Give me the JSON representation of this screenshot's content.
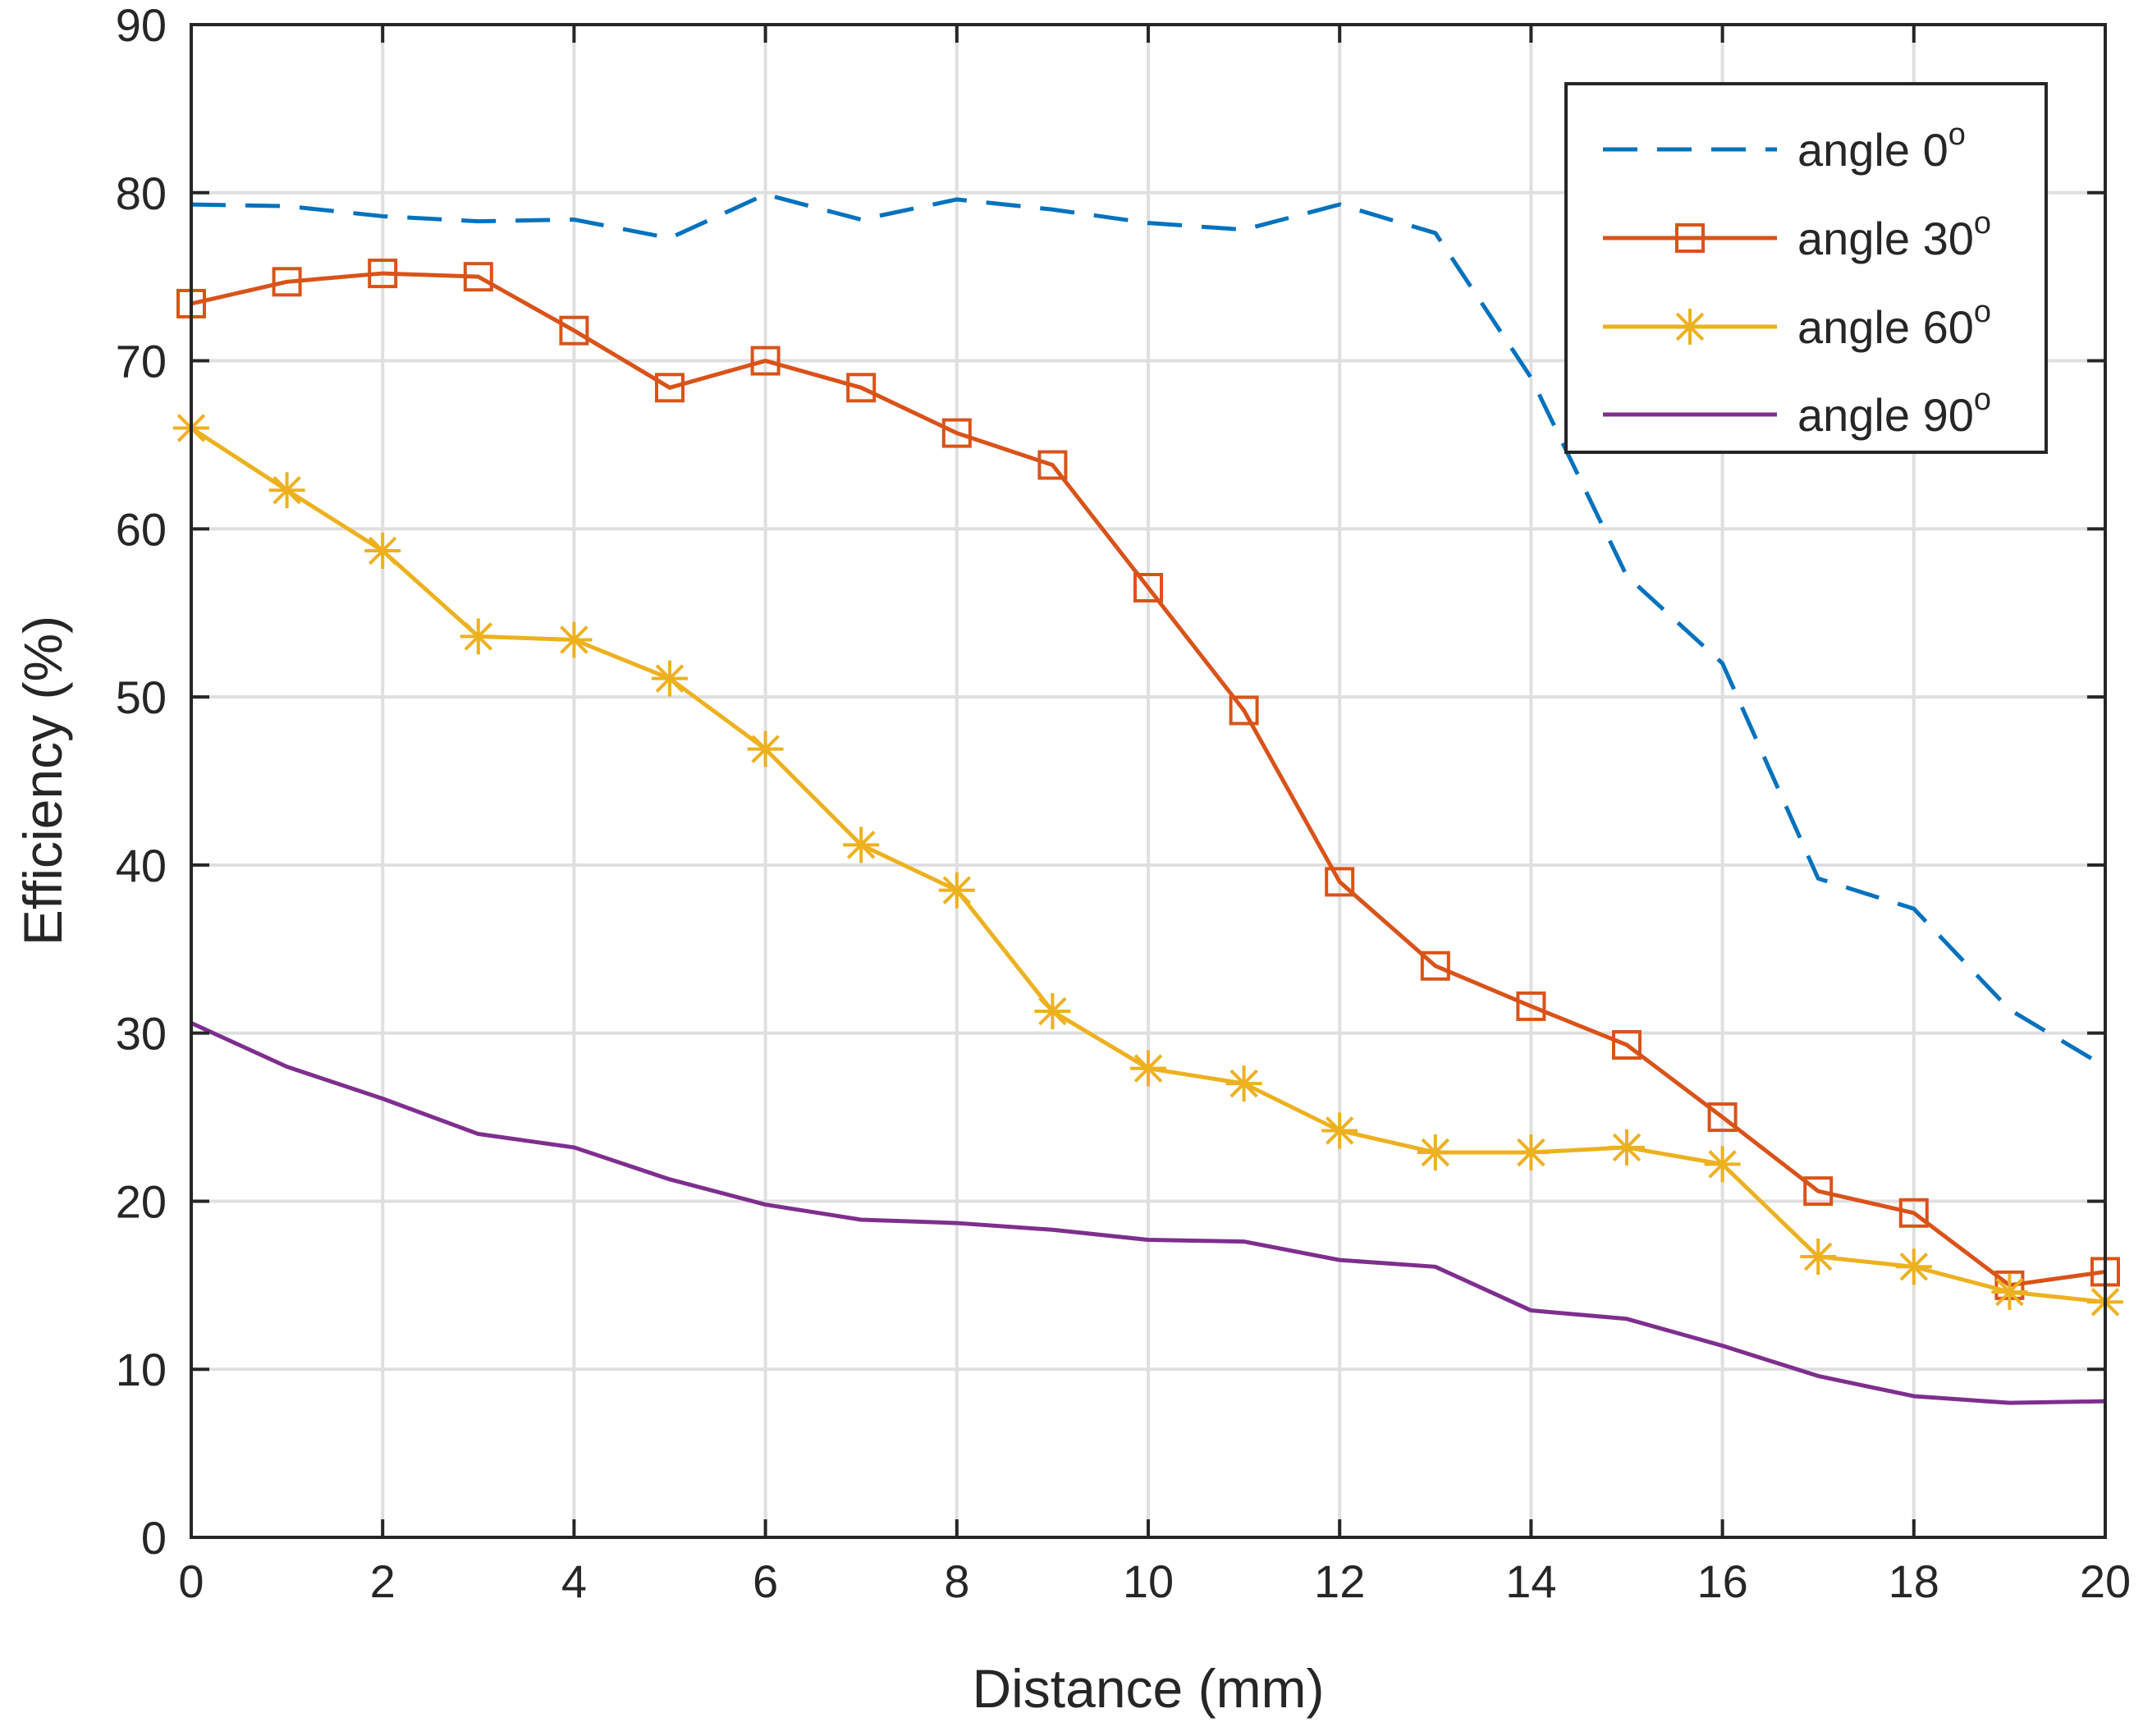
{
  "chart_data": {
    "type": "line",
    "title": "",
    "xlabel": "Distance (mm)",
    "ylabel": "Efficiency (%)",
    "xlim": [
      0,
      20
    ],
    "ylim": [
      0,
      90
    ],
    "xticks": [
      "0",
      "2",
      "4",
      "6",
      "8",
      "10",
      "12",
      "14",
      "16",
      "18",
      "20"
    ],
    "yticks": [
      "0",
      "10",
      "20",
      "30",
      "40",
      "50",
      "60",
      "70",
      "80",
      "90"
    ],
    "grid": true,
    "legend_position": "top-right",
    "x": [
      0,
      1,
      2,
      3,
      4,
      5,
      6,
      7,
      8,
      9,
      10,
      11,
      12,
      13,
      14,
      15,
      16,
      17,
      18,
      19,
      20
    ],
    "series": [
      {
        "name": "angle 0",
        "superscript": "o",
        "color": "#0072BD",
        "dash": "dashed",
        "marker": "none",
        "values": [
          79.3,
          79.2,
          78.6,
          78.3,
          78.4,
          77.3,
          79.9,
          78.4,
          79.6,
          79.0,
          78.2,
          77.8,
          79.3,
          77.6,
          69.0,
          57.2,
          52.0,
          39.2,
          37.4,
          31.4,
          28.0
        ]
      },
      {
        "name": "angle 30",
        "superscript": "o",
        "color": "#D95319",
        "dash": "solid",
        "marker": "square",
        "values": [
          73.4,
          74.7,
          75.2,
          75.0,
          71.8,
          68.4,
          70.0,
          68.4,
          65.7,
          63.8,
          56.5,
          49.2,
          39.0,
          34.0,
          31.6,
          29.3,
          25.0,
          20.6,
          19.3,
          15.0,
          15.8
        ]
      },
      {
        "name": "angle 60",
        "superscript": "o",
        "color": "#EDB120",
        "dash": "solid",
        "marker": "asterisk",
        "values": [
          66.0,
          62.3,
          58.7,
          53.6,
          53.4,
          51.1,
          46.9,
          41.2,
          38.5,
          31.3,
          27.9,
          27.0,
          24.2,
          22.9,
          22.9,
          23.2,
          22.2,
          16.7,
          16.1,
          14.6,
          14.0
        ]
      },
      {
        "name": "angle 90",
        "superscript": "o",
        "color": "#7E2F8E",
        "dash": "solid",
        "marker": "none",
        "values": [
          30.6,
          28.0,
          26.1,
          24.0,
          23.2,
          21.3,
          19.8,
          18.9,
          18.7,
          18.3,
          17.7,
          17.6,
          16.5,
          16.1,
          13.5,
          13.0,
          11.4,
          9.6,
          8.4,
          8.0,
          8.1
        ]
      }
    ]
  }
}
